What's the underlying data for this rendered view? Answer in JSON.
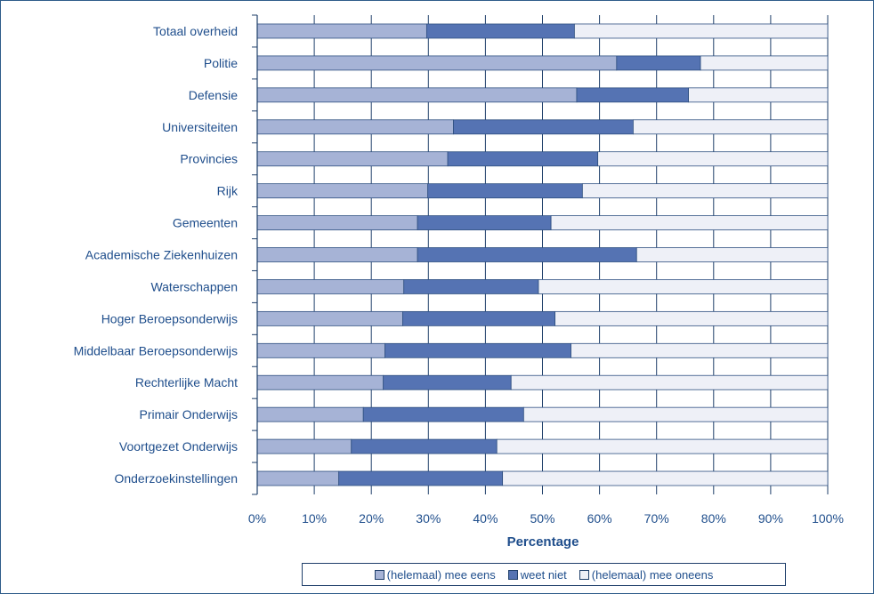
{
  "chart_data": {
    "type": "bar",
    "orientation": "horizontal",
    "stacked": true,
    "categories": [
      "Totaal overheid",
      "Politie",
      "Defensie",
      "Universiteiten",
      "Provincies",
      "Rijk",
      "Gemeenten",
      "Academische Ziekenhuizen",
      "Waterschappen",
      "Hoger Beroepsonderwijs",
      "Middelbaar Beroepsonderwijs",
      "Rechterlijke Macht",
      "Primair Onderwijs",
      "Voortgezet Onderwijs",
      "Onderzoekinstellingen"
    ],
    "series": [
      {
        "name": "(helemaal) mee eens",
        "color": "#a6b3d6",
        "values": [
          29.7,
          63,
          56,
          34.4,
          33.4,
          29.9,
          28.1,
          28.1,
          25.7,
          25.5,
          22.4,
          22.1,
          18.6,
          16.5,
          14.3
        ]
      },
      {
        "name": "weet niet",
        "color": "#5573b3",
        "values": [
          25.9,
          14.7,
          19.6,
          31.5,
          26.3,
          27.1,
          23.4,
          38.4,
          23.6,
          26.7,
          32.6,
          22.4,
          28.1,
          25.5,
          28.7
        ]
      },
      {
        "name": "(helemaal) mee oneens",
        "color": "#eef0f7",
        "values": [
          44.4,
          22.3,
          24.4,
          34.1,
          40.3,
          43,
          48.5,
          33.5,
          50.7,
          47.8,
          45,
          55.5,
          53.3,
          58,
          57
        ]
      }
    ],
    "xlim": [
      0,
      100
    ],
    "x_ticks": [
      "0%",
      "10%",
      "20%",
      "30%",
      "40%",
      "50%",
      "60%",
      "70%",
      "80%",
      "90%",
      "100%"
    ],
    "xlabel": "Percentage",
    "grid": "vertical",
    "legend_position": "bottom"
  }
}
